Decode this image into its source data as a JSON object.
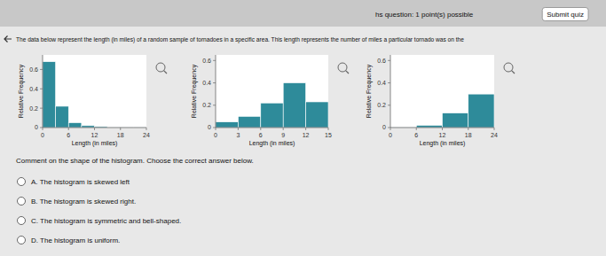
{
  "chart_data": [
    {
      "type": "histogram",
      "bins": [
        0,
        3,
        6,
        9,
        12,
        15,
        18,
        21,
        24
      ],
      "values": [
        0.68,
        0.22,
        0.05,
        0.02,
        0.01,
        0.005,
        0.005,
        0.005
      ],
      "x_label": "Length (in miles)",
      "y_label": "Relative Frequency",
      "xlim": [
        0,
        24
      ],
      "xticks": [
        0,
        6,
        12,
        18,
        24
      ],
      "ylim": [
        0,
        0.75
      ],
      "yticks": [
        0,
        0.2,
        0.4,
        0.6
      ],
      "color": "#2e8b9a",
      "grid": false,
      "annotations": [
        "hs question: 1 point(s) possible",
        "Submit quiz",
        "The data below represent the length (in miles) of a random sample of tornadoes in a specific area. This length represents the number of miles a particular tornado was on the",
        "Comment on the shape of the histogram. Choose the correct answer below.",
        "A.  The histogram is skewed left",
        "B.  The histogram is skewed right.",
        "C.  The histogram is symmetric and bell-shaped.",
        "D.  The histogram is uniform."
      ]
    },
    {
      "type": "histogram",
      "bins": [
        0,
        3,
        6,
        9,
        12,
        15
      ],
      "values": [
        0.05,
        0.1,
        0.22,
        0.4,
        0.23
      ],
      "x_label": "Length (in miles)",
      "y_label": "Relative Frequency",
      "xlim": [
        0,
        15
      ],
      "xticks": [
        0,
        3,
        6,
        9,
        12,
        15
      ],
      "ylim": [
        0,
        0.65
      ],
      "yticks": [
        0,
        0.2,
        0.4,
        0.6
      ],
      "color": "#2e8b9a",
      "grid": false
    },
    {
      "type": "histogram",
      "bins": [
        0,
        6,
        12,
        18,
        24
      ],
      "values": [
        0.005,
        0.02,
        0.13,
        0.3
      ],
      "x_label": "Length (in miles)",
      "y_label": "Relative Frequency",
      "xlim": [
        0,
        24
      ],
      "xticks": [
        0,
        6,
        12,
        18,
        24
      ],
      "ylim": [
        0,
        0.65
      ],
      "yticks": [
        0,
        0.2,
        0.4,
        0.6
      ],
      "color": "#2e8b9a",
      "grid": false
    }
  ]
}
